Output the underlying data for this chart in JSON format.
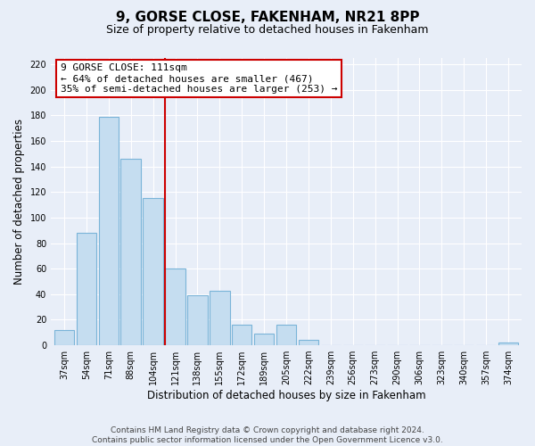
{
  "title": "9, GORSE CLOSE, FAKENHAM, NR21 8PP",
  "subtitle": "Size of property relative to detached houses in Fakenham",
  "xlabel": "Distribution of detached houses by size in Fakenham",
  "ylabel": "Number of detached properties",
  "bar_labels": [
    "37sqm",
    "54sqm",
    "71sqm",
    "88sqm",
    "104sqm",
    "121sqm",
    "138sqm",
    "155sqm",
    "172sqm",
    "189sqm",
    "205sqm",
    "222sqm",
    "239sqm",
    "256sqm",
    "273sqm",
    "290sqm",
    "306sqm",
    "323sqm",
    "340sqm",
    "357sqm",
    "374sqm"
  ],
  "bar_values": [
    12,
    88,
    179,
    146,
    115,
    60,
    39,
    43,
    16,
    9,
    16,
    4,
    0,
    0,
    0,
    0,
    0,
    0,
    0,
    0,
    2
  ],
  "bar_color": "#c5ddf0",
  "bar_edge_color": "#7ab4d8",
  "vline_index": 5,
  "vline_color": "#cc0000",
  "annotation_line1": "9 GORSE CLOSE: 111sqm",
  "annotation_line2": "← 64% of detached houses are smaller (467)",
  "annotation_line3": "35% of semi-detached houses are larger (253) →",
  "annotation_box_color": "#ffffff",
  "annotation_box_edge": "#cc0000",
  "ylim": [
    0,
    225
  ],
  "yticks": [
    0,
    20,
    40,
    60,
    80,
    100,
    120,
    140,
    160,
    180,
    200,
    220
  ],
  "footer_line1": "Contains HM Land Registry data © Crown copyright and database right 2024.",
  "footer_line2": "Contains public sector information licensed under the Open Government Licence v3.0.",
  "bg_color": "#e8eef8",
  "plot_bg_color": "#e8eef8",
  "grid_color": "#ffffff",
  "title_fontsize": 11,
  "subtitle_fontsize": 9,
  "axis_label_fontsize": 8.5,
  "tick_fontsize": 7,
  "annot_fontsize": 8,
  "footer_fontsize": 6.5
}
